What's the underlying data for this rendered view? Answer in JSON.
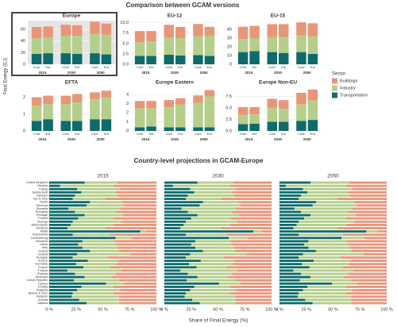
{
  "chart_data": [
    {
      "type": "bar",
      "stacked": true,
      "title": "Comparison between GCAM versions",
      "ylabel": "Final Energy (EJ)",
      "legend_title": "Sector",
      "legend": "right",
      "groups": [
        "2015",
        "2030",
        "2050"
      ],
      "bars": [
        "Core",
        "Eur"
      ],
      "facets": [
        {
          "title": "Europe",
          "highlight": true,
          "ylim": [
            0,
            75
          ],
          "yticks": [
            0,
            20,
            40,
            60
          ]
        },
        {
          "title": "EU-12",
          "ylim": [
            0,
            10.5
          ],
          "yticks": [
            {
              "value": 0,
              "label": "0.0"
            },
            2.5,
            {
              "value": 5,
              "label": "5.0"
            },
            7.5,
            {
              "value": 10,
              "label": "10.0"
            }
          ]
        },
        {
          "title": "EU-15",
          "ylim": [
            0,
            50
          ],
          "yticks": [
            0,
            10,
            20,
            30,
            40
          ]
        },
        {
          "title": "EFTA",
          "ylim": [
            0,
            2.6
          ],
          "yticks": [
            0,
            1,
            2
          ]
        },
        {
          "title": "Europe Eastern",
          "ylim": [
            0,
            4.8
          ],
          "yticks": [
            0,
            1,
            2,
            3,
            4
          ]
        },
        {
          "title": "Europe Non-EU",
          "ylim": [
            0,
            9.5
          ],
          "yticks": [
            {
              "value": 0,
              "label": "0.0"
            },
            2.5,
            {
              "value": 5,
              "label": "5.0"
            },
            7.5
          ]
        }
      ],
      "series": [
        {
          "name": "Buildings",
          "color": "#e8967a",
          "values": [
            [
              19,
              19,
              19,
              18,
              21,
              19
            ],
            [
              2.7,
              2.5,
              3,
              2.7,
              3,
              2.2
            ],
            [
              14,
              14,
              15,
              15,
              15,
              15
            ],
            [
              0.5,
              0.5,
              0.5,
              0.5,
              0.4,
              0.4
            ],
            [
              0.8,
              0.8,
              0.8,
              0.7,
              0.8,
              0.7
            ],
            [
              1.7,
              1.6,
              2,
              1.9,
              2.5,
              2.4
            ]
          ]
        },
        {
          "name": "Industry",
          "color": "#b5cf8a",
          "values": [
            [
              27,
              27,
              30,
              31,
              33,
              34
            ],
            [
              3.3,
              3.5,
              4.2,
              4.2,
              4.5,
              4.8
            ],
            [
              15,
              15,
              17,
              18,
              19,
              20
            ],
            [
              0.9,
              0.9,
              1.0,
              1.1,
              1.2,
              1.3
            ],
            [
              2.1,
              2.0,
              2.2,
              2.5,
              2.7,
              3.4
            ],
            [
              2,
              2,
              3,
              2.8,
              3.6,
              4.2
            ]
          ]
        },
        {
          "name": "Transportation",
          "color": "#0f6b6b",
          "values": [
            [
              18,
              19,
              19,
              18,
              19,
              17
            ],
            [
              2,
              2,
              2.3,
              2.1,
              2.2,
              2
            ],
            [
              14,
              15,
              14,
              13,
              14,
              12
            ],
            [
              0.6,
              0.7,
              0.6,
              0.6,
              0.7,
              0.7
            ],
            [
              0.4,
              0.5,
              0.4,
              0.4,
              0.4,
              0.4
            ],
            [
              1.5,
              1.6,
              2,
              2,
              2.2,
              2.4
            ]
          ]
        }
      ]
    },
    {
      "type": "barh",
      "stacked": true,
      "title": "Country-level projections in GCAM-Europe",
      "xlabel": "Share of Final Energy (%)",
      "xlim": [
        0,
        100
      ],
      "xticks": [
        {
          "value": 0,
          "label": "0 %"
        },
        {
          "value": 25,
          "label": "25 %"
        },
        {
          "value": 50,
          "label": "50 %"
        },
        {
          "value": 75,
          "label": "75 %"
        },
        {
          "value": 100,
          "label": "100 %"
        }
      ],
      "categories": [
        "United Kingdom",
        "Ukraine",
        "Turkey",
        "Switzerland",
        "Sweden",
        "Ser & Mne",
        "Spain",
        "Slovenia",
        "Slovakia",
        "Romania",
        "Portugal",
        "Poland",
        "Norway",
        "Netherlands",
        "Moldova",
        "Malta",
        "Macedonia",
        "Luxembourg",
        "Lithuania",
        "Latvia",
        "Italy",
        "Ireland",
        "Iceland",
        "Hungary",
        "Greece",
        "Germany",
        "France",
        "Finland",
        "Estonia",
        "Denmark",
        "Czech Republic",
        "Cyprus",
        "Croatia",
        "Bulgaria",
        "Bosnia & Herz",
        "Belgium",
        "Austria",
        "Albania"
      ],
      "facets": [
        {
          "title": "2015"
        },
        {
          "title": "2030"
        },
        {
          "title": "2050"
        }
      ],
      "series": [
        {
          "color": "#0f6b6b",
          "values": [
            [
              33,
              10,
              26,
              30,
              24,
              22,
              38,
              35,
              18,
              24,
              33,
              27,
              22,
              20,
              17,
              85,
              22,
              62,
              31,
              27,
              31,
              38,
              26,
              22,
              36,
              25,
              32,
              17,
              24,
              33,
              23,
              53,
              30,
              26,
              22,
              21,
              28,
              35
            ],
            [
              31,
              8,
              24,
              28,
              22,
              20,
              36,
              33,
              16,
              22,
              31,
              25,
              20,
              18,
              15,
              83,
              20,
              60,
              29,
              25,
              29,
              36,
              24,
              20,
              34,
              23,
              30,
              15,
              22,
              31,
              21,
              51,
              28,
              24,
              20,
              19,
              26,
              33
            ],
            [
              29,
              6,
              22,
              26,
              20,
              18,
              34,
              31,
              14,
              20,
              29,
              23,
              18,
              16,
              13,
              81,
              18,
              58,
              27,
              23,
              27,
              34,
              22,
              18,
              32,
              21,
              28,
              13,
              20,
              29,
              19,
              49,
              26,
              22,
              18,
              17,
              24,
              31
            ]
          ]
        },
        {
          "color": "#b5cf8a",
          "values": [
            [
              30,
              50,
              40,
              32,
              40,
              30,
              30,
              35,
              48,
              38,
              36,
              33,
              45,
              40,
              35,
              5,
              35,
              15,
              30,
              35,
              33,
              27,
              50,
              33,
              28,
              38,
              25,
              50,
              38,
              25,
              42,
              17,
              30,
              40,
              38,
              44,
              37,
              30
            ],
            [
              33,
              53,
              43,
              35,
              43,
              33,
              33,
              38,
              51,
              41,
              39,
              36,
              48,
              43,
              38,
              8,
              38,
              18,
              33,
              38,
              36,
              30,
              53,
              36,
              31,
              41,
              28,
              53,
              41,
              28,
              45,
              20,
              33,
              43,
              41,
              47,
              40,
              33
            ],
            [
              36,
              56,
              46,
              38,
              46,
              36,
              36,
              41,
              54,
              44,
              42,
              39,
              51,
              46,
              41,
              11,
              41,
              21,
              36,
              41,
              39,
              33,
              56,
              39,
              34,
              44,
              31,
              56,
              44,
              31,
              48,
              23,
              36,
              46,
              44,
              50,
              43,
              36
            ]
          ]
        },
        {
          "color": "#e8967a",
          "values": [
            [
              37,
              40,
              34,
              38,
              36,
              48,
              32,
              30,
              34,
              38,
              31,
              40,
              33,
              40,
              48,
              10,
              43,
              23,
              39,
              38,
              36,
              35,
              24,
              45,
              36,
              37,
              43,
              33,
              38,
              42,
              35,
              30,
              40,
              34,
              40,
              35,
              35,
              35
            ],
            [
              36,
              39,
              33,
              37,
              35,
              47,
              31,
              29,
              33,
              37,
              30,
              39,
              32,
              39,
              47,
              9,
              42,
              22,
              38,
              37,
              35,
              34,
              23,
              44,
              35,
              36,
              42,
              32,
              37,
              41,
              34,
              29,
              39,
              33,
              39,
              34,
              34,
              34
            ],
            [
              35,
              38,
              32,
              36,
              34,
              46,
              30,
              28,
              32,
              36,
              29,
              38,
              31,
              38,
              46,
              8,
              41,
              21,
              37,
              36,
              34,
              33,
              22,
              43,
              34,
              35,
              41,
              31,
              36,
              40,
              33,
              28,
              38,
              32,
              38,
              33,
              33,
              33
            ]
          ]
        }
      ]
    }
  ]
}
